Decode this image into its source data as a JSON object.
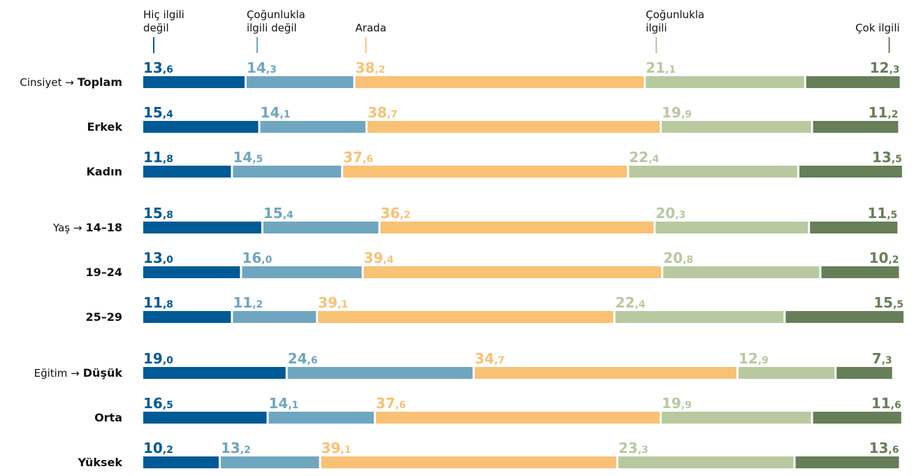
{
  "chart_data": {
    "type": "bar",
    "orientation": "horizontal",
    "stacked": true,
    "xlim": [
      0,
      100
    ],
    "groups": [
      {
        "name": "Cinsiyet →",
        "categories": [
          "Toplam",
          "Erkek",
          "Kadın"
        ]
      },
      {
        "name": "Yaş →",
        "categories": [
          "14–18",
          "19–24",
          "25–29"
        ]
      },
      {
        "name": "Eğitim →",
        "categories": [
          "Düşük",
          "Orta",
          "Yüksek"
        ]
      }
    ],
    "series": [
      {
        "name": "Hiç ilgili değil",
        "color": "#005a96",
        "values": [
          13.6,
          15.4,
          11.8,
          15.8,
          13.0,
          11.8,
          19.0,
          16.5,
          10.2
        ],
        "value_labels": [
          "13,6",
          "15,4",
          "11,8",
          "15,8",
          "13,0",
          "11,8",
          "19,0",
          "16,5",
          "10,2"
        ]
      },
      {
        "name": "Çoğunlukla ilgili değil",
        "color": "#6fa6bf",
        "values": [
          14.3,
          14.1,
          14.5,
          15.4,
          16.0,
          11.2,
          24.6,
          14.1,
          13.2
        ],
        "value_labels": [
          "14,3",
          "14,1",
          "14,5",
          "15,4",
          "16,0",
          "11,2",
          "24,6",
          "14,1",
          "13,2"
        ]
      },
      {
        "name": "Arada",
        "color": "#f9c173",
        "values": [
          38.2,
          38.7,
          37.6,
          36.2,
          39.4,
          39.1,
          34.7,
          37.6,
          39.1
        ],
        "value_labels": [
          "38,2",
          "38,7",
          "37,6",
          "36,2",
          "39,4",
          "39,1",
          "34,7",
          "37,6",
          "39,1"
        ]
      },
      {
        "name": "Çoğunlukla ilgili",
        "color": "#b8c9a0",
        "values": [
          21.1,
          19.9,
          22.4,
          20.3,
          20.8,
          22.4,
          12.9,
          19.9,
          23.3
        ],
        "value_labels": [
          "21,1",
          "19,9",
          "22,4",
          "20,3",
          "20,8",
          "22,4",
          "12,9",
          "19,9",
          "23,3"
        ]
      },
      {
        "name": "Çok ilgili",
        "color": "#677f58",
        "values": [
          12.3,
          11.2,
          13.5,
          11.5,
          10.2,
          15.5,
          7.3,
          11.6,
          13.6
        ],
        "value_labels": [
          "12,3",
          "11,2",
          "13,5",
          "11,5",
          "10,2",
          "15,5",
          "7,3",
          "11,6",
          "13,6"
        ]
      }
    ]
  }
}
